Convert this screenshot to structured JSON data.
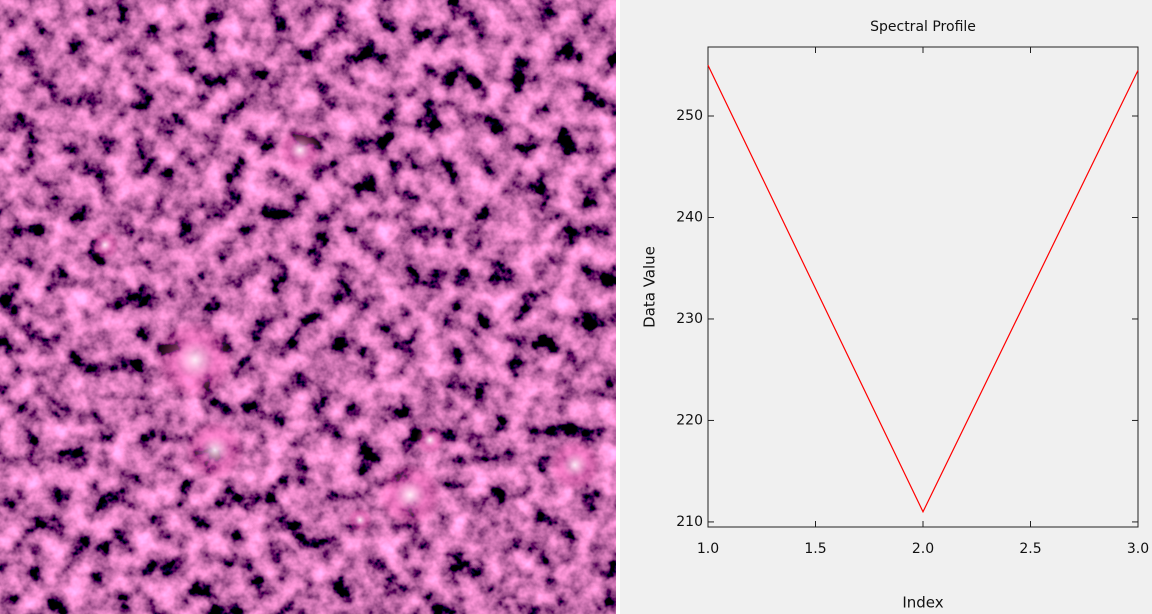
{
  "chart_data": {
    "type": "line",
    "title": "Spectral Profile",
    "x_label": "Index",
    "y_label": "Data Value",
    "x": [
      1,
      2,
      3
    ],
    "values": [
      255,
      211,
      254.5
    ],
    "color": "#ff0000",
    "xlim": [
      1,
      3
    ],
    "xticks": [
      {
        "value": 1,
        "label": "1.0"
      },
      1.5,
      {
        "value": 2,
        "label": "2.0"
      },
      2.5,
      {
        "value": 3,
        "label": "3.0"
      }
    ],
    "ylim": [
      209.5,
      256.8
    ],
    "yticks": [
      210,
      220,
      230,
      240,
      250
    ]
  }
}
